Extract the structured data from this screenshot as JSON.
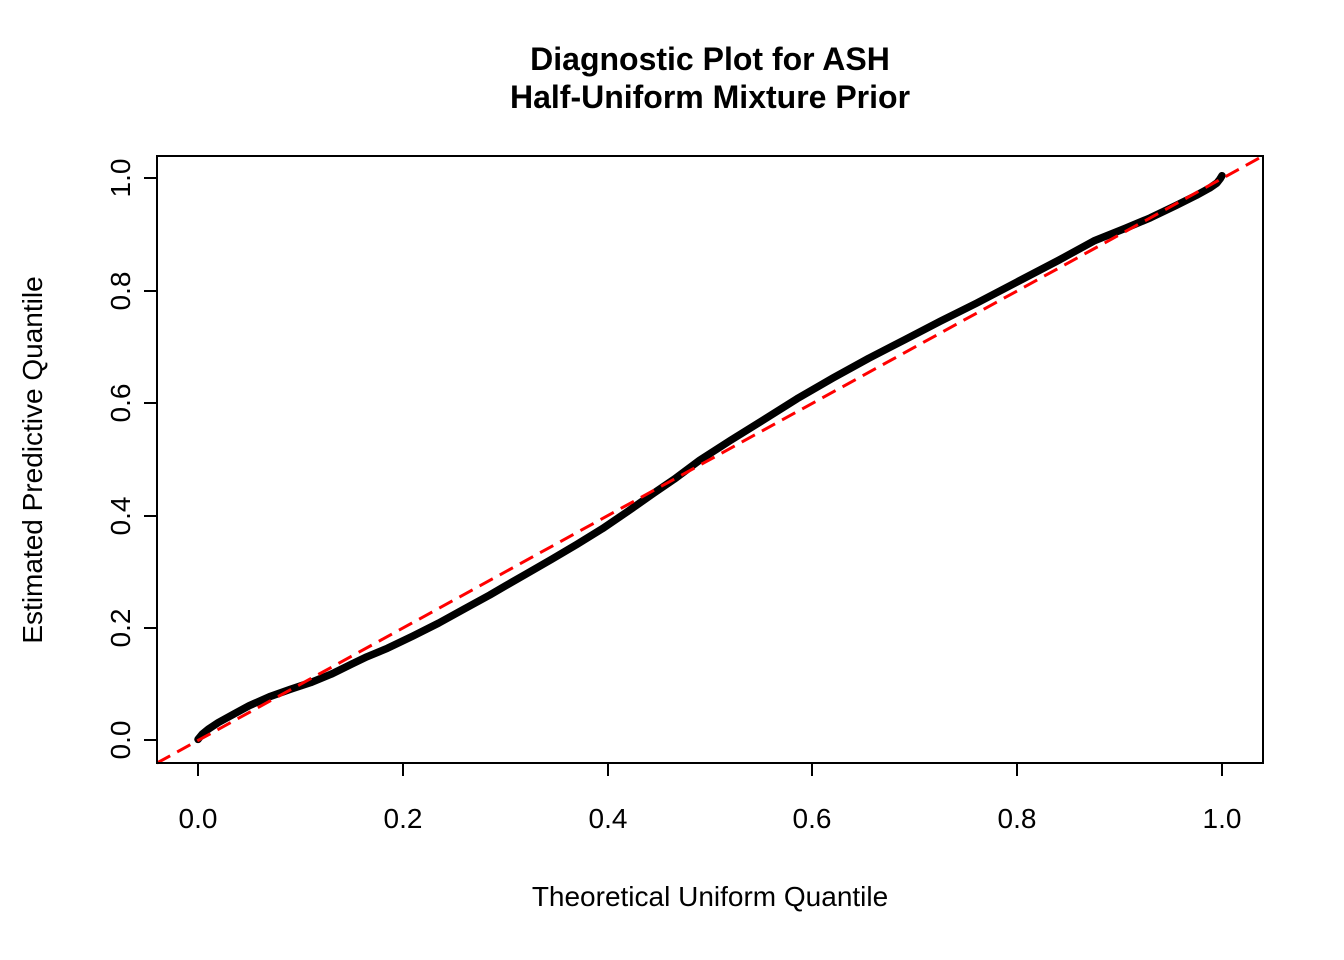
{
  "figure": {
    "background": "#ffffff",
    "title": "Diagnostic Plot for ASH\nHalf-Uniform Mixture Prior"
  },
  "chart_data": {
    "type": "line",
    "title": "Diagnostic Plot for ASH Half-Uniform Mixture Prior",
    "xlabel": "Theoretical Uniform Quantile",
    "ylabel": "Estimated Predictive Quantile",
    "xlim": [
      -0.04,
      1.04
    ],
    "ylim": [
      -0.04,
      1.04
    ],
    "x_ticks": [
      0.0,
      0.2,
      0.4,
      0.6,
      0.8,
      1.0
    ],
    "y_ticks": [
      0.0,
      0.2,
      0.4,
      0.6,
      0.8,
      1.0
    ],
    "x_tick_labels": [
      "0.0",
      "0.2",
      "0.4",
      "0.6",
      "0.8",
      "1.0"
    ],
    "y_tick_labels": [
      "0.0",
      "0.2",
      "0.4",
      "0.6",
      "0.8",
      "1.0"
    ],
    "grid": false,
    "legend": null,
    "series": [
      {
        "name": "estimated-predictive-quantile-curve",
        "description": "Empirical predictive quantiles vs theoretical uniform quantiles (thick black curve)",
        "color": "#000000",
        "line_width": 7.5,
        "dash": null,
        "x": [
          0.0,
          0.004,
          0.01,
          0.02,
          0.035,
          0.05,
          0.07,
          0.09,
          0.11,
          0.13,
          0.15,
          0.165,
          0.185,
          0.21,
          0.235,
          0.26,
          0.285,
          0.3,
          0.32,
          0.345,
          0.37,
          0.395,
          0.42,
          0.445,
          0.465,
          0.49,
          0.52,
          0.55,
          0.585,
          0.62,
          0.655,
          0.69,
          0.725,
          0.76,
          0.8,
          0.84,
          0.875,
          0.905,
          0.93,
          0.955,
          0.975,
          0.988,
          0.995,
          0.998,
          1.0
        ],
        "y": [
          0.002,
          0.011,
          0.02,
          0.032,
          0.047,
          0.062,
          0.078,
          0.091,
          0.103,
          0.118,
          0.136,
          0.149,
          0.164,
          0.186,
          0.209,
          0.234,
          0.259,
          0.275,
          0.296,
          0.322,
          0.349,
          0.377,
          0.408,
          0.44,
          0.465,
          0.499,
          0.534,
          0.568,
          0.608,
          0.645,
          0.68,
          0.713,
          0.746,
          0.778,
          0.816,
          0.854,
          0.889,
          0.911,
          0.93,
          0.952,
          0.97,
          0.983,
          0.992,
          0.999,
          1.005
        ]
      },
      {
        "name": "identity-reference-line",
        "description": "y = x reference diagonal (red dashed)",
        "color": "#FF0000",
        "line_width": 3,
        "dash": [
          15,
          8
        ],
        "x": [
          -0.04,
          1.04
        ],
        "y": [
          -0.04,
          1.04
        ]
      }
    ]
  }
}
